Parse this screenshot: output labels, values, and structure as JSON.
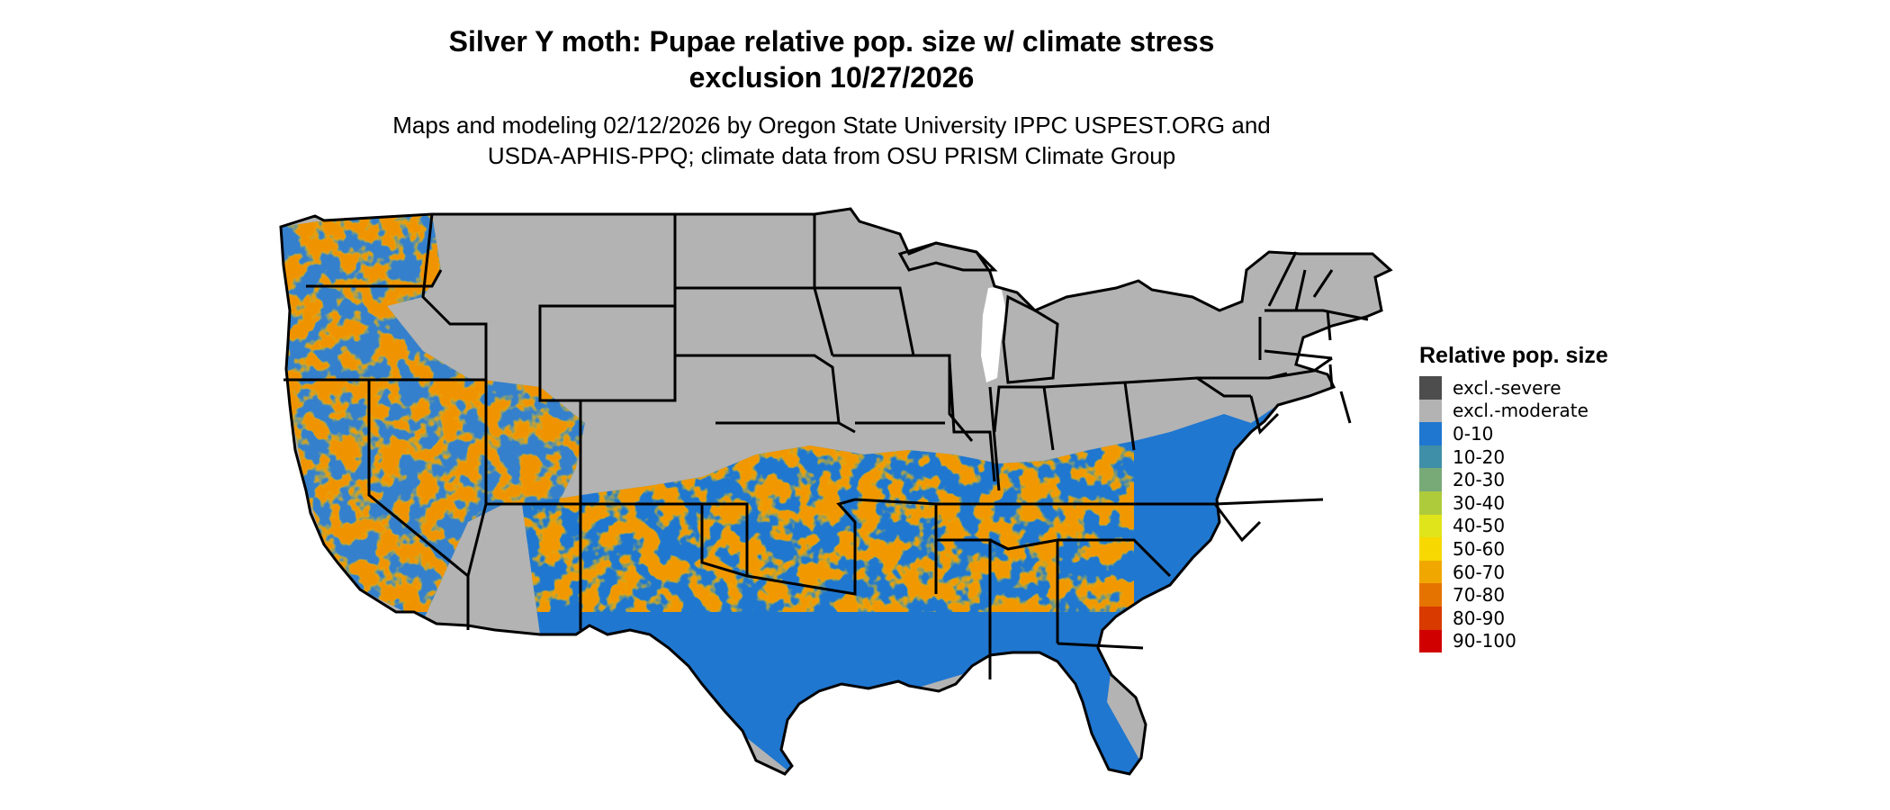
{
  "title": {
    "line1": "Silver Y moth: Pupae relative pop. size w/ climate stress",
    "line2": "exclusion 10/27/2026"
  },
  "subtitle": {
    "line1": "Maps and modeling 02/12/2026 by Oregon State University IPPC USPEST.ORG and",
    "line2": "USDA-APHIS-PPQ; climate data from OSU PRISM Climate Group"
  },
  "legend": {
    "title": "Relative pop. size",
    "items": [
      {
        "label": "excl.-severe",
        "color": "#4d4d4d"
      },
      {
        "label": "excl.-moderate",
        "color": "#b3b3b3"
      },
      {
        "label": "0-10",
        "color": "#1f77d0"
      },
      {
        "label": "10-20",
        "color": "#3f8fa8"
      },
      {
        "label": "20-30",
        "color": "#78aa78"
      },
      {
        "label": "30-40",
        "color": "#aecb3c"
      },
      {
        "label": "40-50",
        "color": "#e0e41a"
      },
      {
        "label": "50-60",
        "color": "#f7d800"
      },
      {
        "label": "60-70",
        "color": "#f0a800"
      },
      {
        "label": "70-80",
        "color": "#e57300"
      },
      {
        "label": "80-90",
        "color": "#d83a00"
      },
      {
        "label": "90-100",
        "color": "#d10000"
      }
    ]
  }
}
